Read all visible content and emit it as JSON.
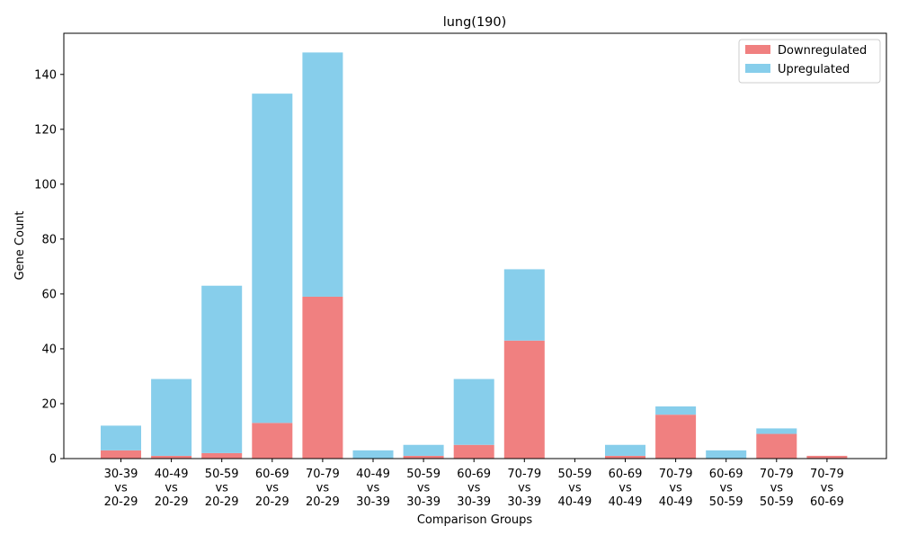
{
  "chart_data": {
    "type": "bar",
    "stacked": true,
    "title": "lung(190)",
    "xlabel": "Comparison Groups",
    "ylabel": "Gene Count",
    "ylim": [
      0,
      155
    ],
    "yticks": [
      0,
      20,
      40,
      60,
      80,
      100,
      120,
      140
    ],
    "grid": false,
    "legend_position": "top-right",
    "categories": [
      [
        "30-39",
        "vs",
        "20-29"
      ],
      [
        "40-49",
        "vs",
        "20-29"
      ],
      [
        "50-59",
        "vs",
        "20-29"
      ],
      [
        "60-69",
        "vs",
        "20-29"
      ],
      [
        "70-79",
        "vs",
        "20-29"
      ],
      [
        "40-49",
        "vs",
        "30-39"
      ],
      [
        "50-59",
        "vs",
        "30-39"
      ],
      [
        "60-69",
        "vs",
        "30-39"
      ],
      [
        "70-79",
        "vs",
        "30-39"
      ],
      [
        "50-59",
        "vs",
        "40-49"
      ],
      [
        "60-69",
        "vs",
        "40-49"
      ],
      [
        "70-79",
        "vs",
        "40-49"
      ],
      [
        "60-69",
        "vs",
        "50-59"
      ],
      [
        "70-79",
        "vs",
        "50-59"
      ],
      [
        "70-79",
        "vs",
        "60-69"
      ]
    ],
    "series": [
      {
        "name": "Downregulated",
        "color": "#f08080",
        "values": [
          3,
          1,
          2,
          13,
          59,
          0,
          1,
          5,
          43,
          0,
          1,
          16,
          0,
          9,
          1
        ]
      },
      {
        "name": "Upregulated",
        "color": "#87ceeb",
        "values": [
          9,
          28,
          61,
          120,
          89,
          3,
          4,
          24,
          26,
          0,
          4,
          3,
          3,
          2,
          0
        ]
      }
    ]
  }
}
